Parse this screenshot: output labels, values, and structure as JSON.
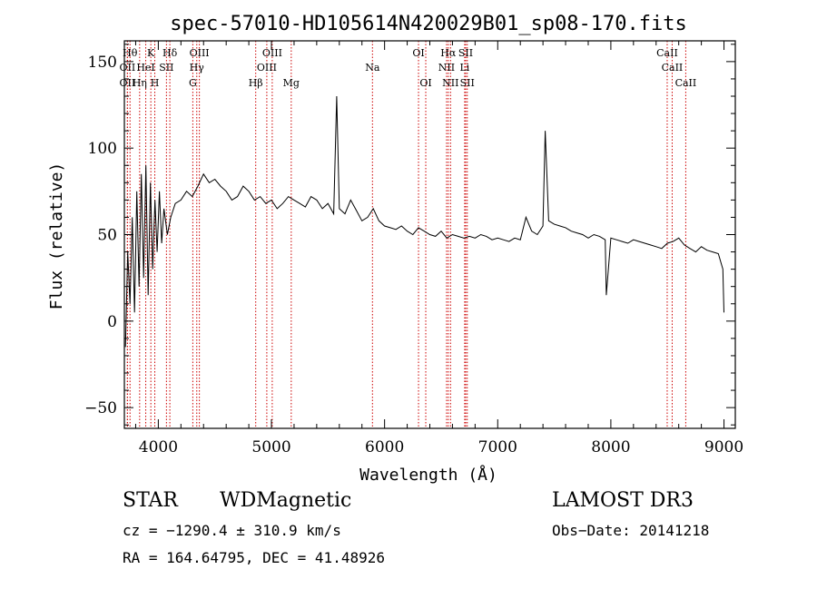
{
  "chart_data": {
    "type": "line",
    "title": "spec-57010-HD105614N420029B01_sp08-170.fits",
    "xlabel": "Wavelength (Å)",
    "ylabel": "Flux (relative)",
    "xlim": [
      3700,
      9100
    ],
    "ylim": [
      -62,
      162
    ],
    "xticks": [
      4000,
      5000,
      6000,
      7000,
      8000,
      9000
    ],
    "yticks": [
      -50,
      0,
      50,
      100,
      150
    ],
    "grid": false,
    "line_color": "#000000",
    "marker_color": "#cc0000",
    "series": [
      {
        "x": [
          3710,
          3730,
          3750,
          3770,
          3790,
          3810,
          3830,
          3850,
          3870,
          3890,
          3910,
          3930,
          3950,
          3970,
          3990,
          4010,
          4030,
          4050,
          4080,
          4110,
          4150,
          4200,
          4250,
          4300,
          4350,
          4400,
          4450,
          4500,
          4550,
          4600,
          4650,
          4700,
          4750,
          4800,
          4850,
          4900,
          4950,
          5000,
          5050,
          5100,
          5150,
          5200,
          5250,
          5300,
          5350,
          5400,
          5450,
          5500,
          5550,
          5577,
          5600,
          5650,
          5700,
          5750,
          5800,
          5850,
          5900,
          5950,
          6000,
          6050,
          6100,
          6150,
          6200,
          6250,
          6300,
          6350,
          6400,
          6450,
          6500,
          6550,
          6600,
          6650,
          6700,
          6750,
          6800,
          6850,
          6900,
          6950,
          7000,
          7050,
          7100,
          7150,
          7200,
          7250,
          7300,
          7350,
          7400,
          7420,
          7450,
          7500,
          7550,
          7600,
          7650,
          7700,
          7750,
          7800,
          7850,
          7900,
          7950,
          7960,
          8000,
          8050,
          8100,
          8150,
          8200,
          8250,
          8300,
          8350,
          8400,
          8450,
          8500,
          8550,
          8600,
          8650,
          8700,
          8750,
          8800,
          8850,
          8900,
          8950,
          8990,
          9000
        ],
        "y": [
          -15,
          40,
          10,
          60,
          5,
          75,
          20,
          85,
          25,
          90,
          15,
          80,
          30,
          70,
          40,
          75,
          45,
          65,
          50,
          60,
          68,
          70,
          75,
          72,
          78,
          85,
          80,
          82,
          78,
          75,
          70,
          72,
          78,
          75,
          70,
          72,
          68,
          70,
          65,
          68,
          72,
          70,
          68,
          66,
          72,
          70,
          65,
          68,
          62,
          130,
          65,
          62,
          70,
          64,
          58,
          60,
          65,
          58,
          55,
          54,
          53,
          55,
          52,
          50,
          54,
          52,
          50,
          49,
          52,
          48,
          50,
          49,
          48,
          49,
          48,
          50,
          49,
          47,
          48,
          47,
          46,
          48,
          47,
          60,
          52,
          50,
          55,
          110,
          58,
          56,
          55,
          54,
          52,
          51,
          50,
          48,
          50,
          49,
          47,
          15,
          48,
          47,
          46,
          45,
          47,
          46,
          45,
          44,
          43,
          42,
          45,
          46,
          48,
          44,
          42,
          40,
          43,
          41,
          40,
          39,
          30,
          5
        ]
      }
    ],
    "lines": [
      {
        "label": "OII",
        "x": 3727,
        "row": 2
      },
      {
        "label": "Hθ",
        "x": 3750,
        "row": 1
      },
      {
        "label": "OII",
        "x": 3727,
        "row": 3
      },
      {
        "label": "Hη",
        "x": 3835,
        "row": 3
      },
      {
        "label": "HeI",
        "x": 3889,
        "row": 2
      },
      {
        "label": "K",
        "x": 3934,
        "row": 1
      },
      {
        "label": "H",
        "x": 3969,
        "row": 3
      },
      {
        "label": "SII",
        "x": 4072,
        "row": 2
      },
      {
        "label": "Hδ",
        "x": 4102,
        "row": 1
      },
      {
        "label": "G",
        "x": 4305,
        "row": 3
      },
      {
        "label": "OIII",
        "x": 4363,
        "row": 1
      },
      {
        "label": "Hγ",
        "x": 4340,
        "row": 2
      },
      {
        "label": "Hβ",
        "x": 4861,
        "row": 3
      },
      {
        "label": "OIII",
        "x": 4959,
        "row": 2
      },
      {
        "label": "OIII",
        "x": 5007,
        "row": 1
      },
      {
        "label": "Mg",
        "x": 5175,
        "row": 3
      },
      {
        "label": "Na",
        "x": 5893,
        "row": 2
      },
      {
        "label": "OI",
        "x": 6300,
        "row": 1
      },
      {
        "label": "OI",
        "x": 6364,
        "row": 3
      },
      {
        "label": "NII",
        "x": 6548,
        "row": 2
      },
      {
        "label": "Hα",
        "x": 6563,
        "row": 1
      },
      {
        "label": "NII",
        "x": 6583,
        "row": 3
      },
      {
        "label": "SII",
        "x": 6717,
        "row": 1
      },
      {
        "label": "Li",
        "x": 6708,
        "row": 2
      },
      {
        "label": "SII",
        "x": 6731,
        "row": 3
      },
      {
        "label": "CaII",
        "x": 8498,
        "row": 1
      },
      {
        "label": "CaII",
        "x": 8542,
        "row": 2
      },
      {
        "label": "CaII",
        "x": 8662,
        "row": 3
      }
    ]
  },
  "info": {
    "class_label": "STAR",
    "subclass": "WDMagnetic",
    "survey": "LAMOST DR3",
    "cz": "cz = −1290.4 ± 310.9 km/s",
    "obs_date": "Obs−Date: 20141218",
    "coords": "RA = 164.64795, DEC =  41.48926"
  }
}
